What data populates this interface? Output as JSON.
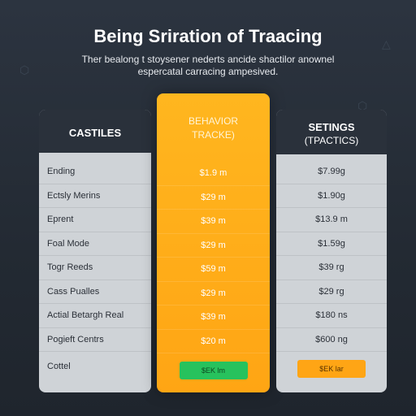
{
  "header": {
    "title": "Being Sriration of Traacing",
    "subtitle": "Ther bealong t stoysener nederts ancide shactilor anownel espercatal carracing ampesived."
  },
  "columns": {
    "left": {
      "title": "CASTILES",
      "rows": [
        "Ending",
        "Ectsly Merins",
        "Eprent",
        "Foal Mode",
        "Togr Reeds",
        "Cass Pualles",
        "Actial Betargh Real",
        "Pogieft Centrs"
      ],
      "footer": "Cottel"
    },
    "middle": {
      "title": "BEHAVIOR",
      "subtitle": "TRACKE)",
      "values": [
        "$1.9 m",
        "$29 m",
        "$39 m",
        "$29 m",
        "$59 m",
        "$29 m",
        "$39 m",
        "$20 m"
      ],
      "button_label": "$EK  lm"
    },
    "right": {
      "title": "SETINGS",
      "subtitle": "(TPACTICS)",
      "values": [
        "$7.99g",
        "$1.90g",
        "$13.9 m",
        "$1.59g",
        "$39 rg",
        "$29 rg",
        "$180 ns",
        "$600 ng"
      ],
      "button_label": "$EK  lar"
    }
  },
  "colors": {
    "background": "#2c3440",
    "accent": "#ffa514",
    "button_green": "#27c25d",
    "panel": "#cfd3d7"
  }
}
